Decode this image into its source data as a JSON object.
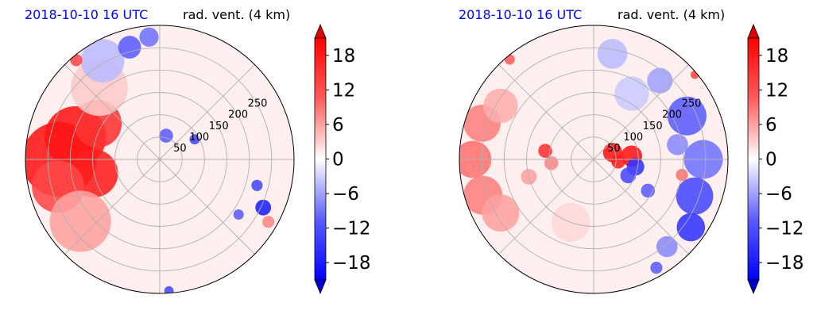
{
  "chart_data": [
    {
      "type": "heatmap",
      "projection": "polar",
      "title_left": "2018-10-10 16 UTC",
      "title_right": "rad. vent. (4 km)",
      "radial_ticks": [
        50,
        100,
        150,
        200,
        250
      ],
      "radial_max": 300,
      "grid": true,
      "colorbar": {
        "ticks": [
          18,
          12,
          6,
          0,
          -6,
          -12,
          -18
        ],
        "tick_labels": [
          "18",
          "12",
          "6",
          "0",
          "−6",
          "−12",
          "−18"
        ],
        "vmin": -21,
        "vmax": 21,
        "extend": "both",
        "colors": {
          "positive": "#ff0000",
          "zero": "#ffffff",
          "negative": "#0000ff"
        }
      },
      "features": [
        {
          "az": 270,
          "r": 225,
          "value": 19,
          "rad": 80
        },
        {
          "az": 285,
          "r": 195,
          "value": 19,
          "rad": 65
        },
        {
          "az": 258,
          "r": 150,
          "value": 18,
          "rad": 50
        },
        {
          "az": 300,
          "r": 160,
          "value": 16,
          "rad": 50
        },
        {
          "az": 255,
          "r": 235,
          "value": 14,
          "rad": 55
        },
        {
          "az": 232,
          "r": 225,
          "value": 6,
          "rad": 65
        },
        {
          "az": 320,
          "r": 210,
          "value": 3,
          "rad": 60
        },
        {
          "az": 330,
          "r": 255,
          "value": -4,
          "rad": 45
        },
        {
          "az": 345,
          "r": 260,
          "value": -12,
          "rad": 22
        },
        {
          "az": 355,
          "r": 275,
          "value": -10,
          "rad": 18
        },
        {
          "az": 320,
          "r": 290,
          "value": 14,
          "rad": 10
        },
        {
          "az": 60,
          "r": 90,
          "value": -14,
          "rad": 8
        },
        {
          "az": 15,
          "r": 55,
          "value": -12,
          "rad": 12
        },
        {
          "az": 115,
          "r": 255,
          "value": -18,
          "rad": 14
        },
        {
          "az": 105,
          "r": 225,
          "value": -14,
          "rad": 9
        },
        {
          "az": 125,
          "r": 215,
          "value": -12,
          "rad": 8
        },
        {
          "az": 120,
          "r": 280,
          "value": 8,
          "rad": 10
        },
        {
          "az": 176,
          "r": 295,
          "value": -14,
          "rad": 7
        }
      ]
    },
    {
      "type": "heatmap",
      "projection": "polar",
      "title_left": "2018-10-10 16 UTC",
      "title_right": "rad. vent. (4 km)",
      "radial_ticks": [
        50,
        100,
        150,
        200,
        250
      ],
      "radial_max": 300,
      "grid": true,
      "colorbar": {
        "ticks": [
          18,
          12,
          6,
          0,
          -6,
          -12,
          -18
        ],
        "tick_labels": [
          "18",
          "12",
          "6",
          "0",
          "−6",
          "−12",
          "−18"
        ],
        "vmin": -21,
        "vmax": 21,
        "extend": "both",
        "colors": {
          "positive": "#ff0000",
          "zero": "#ffffff",
          "negative": "#0000ff"
        }
      },
      "features": [
        {
          "az": 270,
          "r": 270,
          "value": 10,
          "rad": 38
        },
        {
          "az": 252,
          "r": 260,
          "value": 9,
          "rad": 40
        },
        {
          "az": 288,
          "r": 262,
          "value": 9,
          "rad": 38
        },
        {
          "az": 240,
          "r": 240,
          "value": 6,
          "rad": 38
        },
        {
          "az": 300,
          "r": 240,
          "value": 5,
          "rad": 35
        },
        {
          "az": 280,
          "r": 110,
          "value": 16,
          "rad": 12
        },
        {
          "az": 265,
          "r": 95,
          "value": 8,
          "rad": 12
        },
        {
          "az": 255,
          "r": 150,
          "value": 6,
          "rad": 14
        },
        {
          "az": 70,
          "r": 45,
          "value": 19,
          "rad": 18
        },
        {
          "az": 85,
          "r": 85,
          "value": 19,
          "rad": 20
        },
        {
          "az": 95,
          "r": 55,
          "value": 18,
          "rad": 12
        },
        {
          "az": 100,
          "r": 95,
          "value": -16,
          "rad": 16
        },
        {
          "az": 115,
          "r": 85,
          "value": -14,
          "rad": 14
        },
        {
          "az": 120,
          "r": 140,
          "value": -12,
          "rad": 12
        },
        {
          "az": 65,
          "r": 230,
          "value": -12,
          "rad": 40
        },
        {
          "az": 90,
          "r": 245,
          "value": -10,
          "rad": 40
        },
        {
          "az": 110,
          "r": 240,
          "value": -14,
          "rad": 38
        },
        {
          "az": 125,
          "r": 265,
          "value": -16,
          "rad": 28
        },
        {
          "az": 80,
          "r": 190,
          "value": -8,
          "rad": 20
        },
        {
          "az": 100,
          "r": 200,
          "value": 10,
          "rad": 10
        },
        {
          "az": 40,
          "r": 230,
          "value": -6,
          "rad": 25
        },
        {
          "az": 30,
          "r": 170,
          "value": -3,
          "rad": 35
        },
        {
          "az": 10,
          "r": 240,
          "value": -4,
          "rad": 30
        },
        {
          "az": 140,
          "r": 255,
          "value": -8,
          "rad": 20
        },
        {
          "az": 150,
          "r": 280,
          "value": -12,
          "rad": 10
        },
        {
          "az": 200,
          "r": 150,
          "value": 2,
          "rad": 40
        },
        {
          "az": 50,
          "r": 295,
          "value": 14,
          "rad": 6
        },
        {
          "az": 320,
          "r": 292,
          "value": 12,
          "rad": 8
        }
      ]
    }
  ]
}
